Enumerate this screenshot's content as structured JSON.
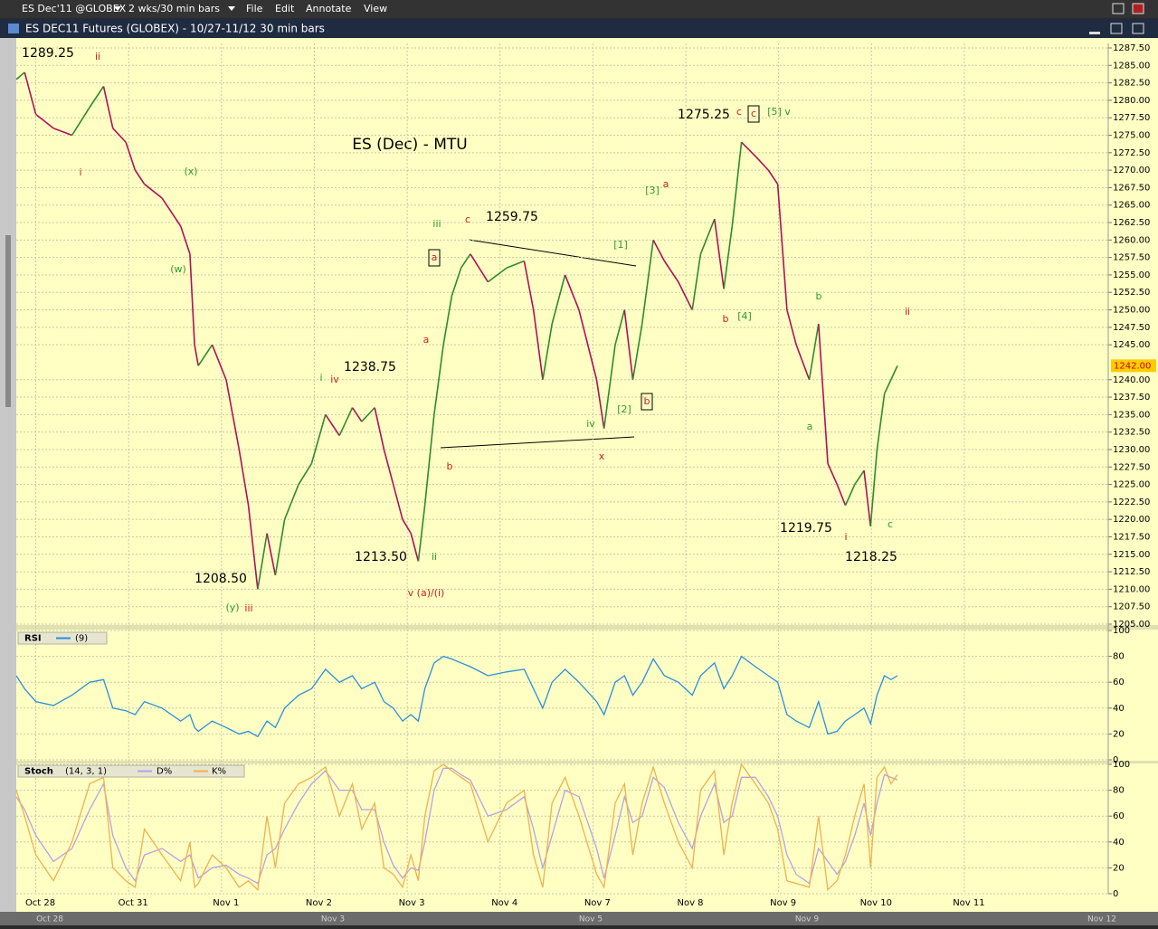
{
  "window": {
    "symbol": "ES Dec'11 @GLOBEX",
    "interval": "2 wks/30 min bars",
    "menus": [
      "File",
      "Edit",
      "Annotate",
      "View"
    ],
    "title": "ES DEC11 Futures (GLOBEX) - 10/27-11/12  30 min bars",
    "overview_labels": [
      "Oct 28",
      "Nov 3",
      "Nov 5",
      "Nov 9",
      "Nov 12"
    ]
  },
  "chart_data": [
    {
      "type": "line",
      "title": "ES (Dec) - MTU",
      "up_color": "#2e8b2e",
      "down_color": "#b0105a",
      "x": [
        -0.21,
        -0.12,
        0,
        0.19,
        0.39,
        0.58,
        0.73,
        0.83,
        0.97,
        1.07,
        1.17,
        1.36,
        1.56,
        1.66,
        1.71,
        1.75,
        1.9,
        2.05,
        2.19,
        2.29,
        2.39,
        2.49,
        2.58,
        2.68,
        2.83,
        2.97,
        3.12,
        3.27,
        3.41,
        3.51,
        3.65,
        3.75,
        3.85,
        3.95,
        4.04,
        4.12,
        4.19,
        4.29,
        4.39,
        4.48,
        4.58,
        4.68,
        4.87,
        5.07,
        5.26,
        5.36,
        5.46,
        5.56,
        5.7,
        5.85,
        6.04,
        6.12,
        6.24,
        6.34,
        6.43,
        6.53,
        6.65,
        6.77,
        6.92,
        7.07,
        7.16,
        7.31,
        7.41,
        7.5,
        7.6,
        7.75,
        7.89,
        7.99,
        8.09,
        8.19,
        8.33,
        8.43,
        8.53,
        8.63,
        8.72,
        8.82,
        8.92,
        8.99,
        9.06,
        9.14,
        9.21,
        9.28
      ],
      "values": [
        1283,
        1284,
        1278,
        1276,
        1275,
        1279,
        1282,
        1276,
        1274,
        1270,
        1268,
        1266,
        1262,
        1258,
        1245,
        1242,
        1245,
        1240,
        1230,
        1222,
        1210,
        1218,
        1212,
        1220,
        1225,
        1228,
        1235,
        1232,
        1236,
        1234,
        1236,
        1230,
        1225,
        1220,
        1218,
        1214,
        1222,
        1235,
        1245,
        1252,
        1256,
        1258,
        1254,
        1256,
        1257,
        1250,
        1240,
        1248,
        1255,
        1250,
        1240,
        1233,
        1245,
        1250,
        1240,
        1248,
        1260,
        1257,
        1254,
        1250,
        1258,
        1263,
        1253,
        1262,
        1274,
        1272,
        1270,
        1268,
        1250,
        1245,
        1240,
        1248,
        1228,
        1225,
        1222,
        1225,
        1227,
        1219,
        1230,
        1238,
        1240,
        1242
      ],
      "last_value": 1242,
      "last_value_label": "1242.00",
      "xlim": [
        -0.21,
        11.55
      ],
      "xticks": [
        {
          "value": 0,
          "label": "Oct 28"
        },
        {
          "value": 1,
          "label": "Oct 31"
        },
        {
          "value": 2,
          "label": "Nov 1"
        },
        {
          "value": 3,
          "label": "Nov 2"
        },
        {
          "value": 4,
          "label": "Nov 3"
        },
        {
          "value": 5,
          "label": "Nov 4"
        },
        {
          "value": 6,
          "label": "Nov 7"
        },
        {
          "value": 7,
          "label": "Nov 8"
        },
        {
          "value": 8,
          "label": "Nov 9"
        },
        {
          "value": 9,
          "label": "Nov 10"
        },
        {
          "value": 10,
          "label": "Nov 11"
        }
      ],
      "ylim": [
        1205,
        1287.5
      ],
      "yticks": [
        {
          "value": 1205,
          "label": "1205.00"
        },
        {
          "value": 1207.5,
          "label": "1207.50"
        },
        {
          "value": 1210,
          "label": "1210.00"
        },
        {
          "value": 1212.5,
          "label": "1212.50"
        },
        {
          "value": 1215,
          "label": "1215.00"
        },
        {
          "value": 1217.5,
          "label": "1217.50"
        },
        {
          "value": 1220,
          "label": "1220.00"
        },
        {
          "value": 1222.5,
          "label": "1222.50"
        },
        {
          "value": 1225,
          "label": "1225.00"
        },
        {
          "value": 1227.5,
          "label": "1227.50"
        },
        {
          "value": 1230,
          "label": "1230.00"
        },
        {
          "value": 1232.5,
          "label": "1232.50"
        },
        {
          "value": 1235,
          "label": "1235.00"
        },
        {
          "value": 1237.5,
          "label": "1237.50"
        },
        {
          "value": 1240,
          "label": "1240.00"
        },
        {
          "value": 1245,
          "label": "1245.00"
        },
        {
          "value": 1247.5,
          "label": "1247.50"
        },
        {
          "value": 1250,
          "label": "1250.00"
        },
        {
          "value": 1252.5,
          "label": "1252.50"
        },
        {
          "value": 1255,
          "label": "1255.00"
        },
        {
          "value": 1257.5,
          "label": "1257.50"
        },
        {
          "value": 1260,
          "label": "1260.00"
        },
        {
          "value": 1262.5,
          "label": "1262.50"
        },
        {
          "value": 1265,
          "label": "1265.00"
        },
        {
          "value": 1267.5,
          "label": "1267.50"
        },
        {
          "value": 1270,
          "label": "1270.00"
        },
        {
          "value": 1272.5,
          "label": "1272.50"
        },
        {
          "value": 1275,
          "label": "1275.00"
        },
        {
          "value": 1277.5,
          "label": "1277.50"
        },
        {
          "value": 1280,
          "label": "1280.00"
        },
        {
          "value": 1282.5,
          "label": "1282.50"
        },
        {
          "value": 1285,
          "label": "1285.00"
        },
        {
          "value": 1287.5,
          "label": "1287.50"
        }
      ],
      "grid": true,
      "annotations": [
        {
          "text": "1289.25",
          "color": "#000000"
        },
        {
          "text": "ii",
          "color": "#cc2222"
        },
        {
          "text": "i",
          "color": "#cc2222"
        },
        {
          "text": "(x)",
          "color": "#2e9a2e"
        },
        {
          "text": "(w)",
          "color": "#2e9a2e"
        },
        {
          "text": "i",
          "color": "#2e9a2e"
        },
        {
          "text": "iv",
          "color": "#cc2222"
        },
        {
          "text": "1238.75",
          "color": "#000000"
        },
        {
          "text": "1208.50",
          "color": "#000000"
        },
        {
          "text": "(y)",
          "color": "#2e9a2e"
        },
        {
          "text": "iii",
          "color": "#cc2222"
        },
        {
          "text": "1213.50",
          "color": "#000000"
        },
        {
          "text": "ii",
          "color": "#2e9a2e"
        },
        {
          "text": "v (a)/(i)",
          "color": "#cc2222"
        },
        {
          "text": "a",
          "color": "#cc2222"
        },
        {
          "text": "b",
          "color": "#cc2222"
        },
        {
          "text": "a",
          "color": "#cc2222"
        },
        {
          "text": "iii",
          "color": "#2e9a2e"
        },
        {
          "text": "c",
          "color": "#cc2222"
        },
        {
          "text": "1259.75",
          "color": "#000000"
        },
        {
          "text": "[1]",
          "color": "#2e9a2e"
        },
        {
          "text": "[2]",
          "color": "#2e9a2e"
        },
        {
          "text": "iv",
          "color": "#2e9a2e"
        },
        {
          "text": "x",
          "color": "#cc2222"
        },
        {
          "text": "b",
          "color": "#cc2222"
        },
        {
          "text": "[3]",
          "color": "#2e9a2e"
        },
        {
          "text": "a",
          "color": "#cc2222"
        },
        {
          "text": "1275.25",
          "color": "#000000"
        },
        {
          "text": "c",
          "color": "#cc2222"
        },
        {
          "text": "c",
          "color": "#cc2222"
        },
        {
          "text": "[5] v",
          "color": "#2e9a2e"
        },
        {
          "text": "[4]",
          "color": "#2e9a2e"
        },
        {
          "text": "b",
          "color": "#cc2222"
        },
        {
          "text": "b",
          "color": "#2e9a2e"
        },
        {
          "text": "ii",
          "color": "#cc2222"
        },
        {
          "text": "a",
          "color": "#2e9a2e"
        },
        {
          "text": "1219.75",
          "color": "#000000"
        },
        {
          "text": "i",
          "color": "#cc2222"
        },
        {
          "text": "c",
          "color": "#2e9a2e"
        },
        {
          "text": "1218.25",
          "color": "#000000"
        }
      ]
    },
    {
      "type": "line",
      "title": "RSI",
      "ylim": [
        0,
        100
      ],
      "yticks": [
        0,
        20,
        40,
        60,
        80,
        100
      ],
      "grid": true,
      "series": [
        {
          "name": "(9)",
          "color": "#2a8fdd",
          "values": [
            65,
            55,
            45,
            42,
            50,
            60,
            62,
            40,
            38,
            35,
            45,
            40,
            30,
            35,
            25,
            22,
            30,
            25,
            20,
            22,
            18,
            30,
            25,
            40,
            50,
            55,
            70,
            60,
            65,
            55,
            60,
            45,
            40,
            30,
            35,
            30,
            55,
            75,
            80,
            78,
            75,
            72,
            65,
            68,
            70,
            55,
            40,
            60,
            70,
            60,
            45,
            35,
            60,
            65,
            50,
            60,
            78,
            65,
            60,
            50,
            65,
            75,
            55,
            65,
            80,
            72,
            65,
            60,
            35,
            30,
            25,
            45,
            20,
            22,
            30,
            35,
            40,
            28,
            50,
            65,
            62,
            65
          ]
        }
      ]
    },
    {
      "type": "line",
      "title": "Stoch",
      "params": "(14, 3, 1)",
      "ylim": [
        0,
        100
      ],
      "yticks": [
        0,
        20,
        40,
        60,
        80,
        100
      ],
      "grid": true,
      "series": [
        {
          "name": "D%",
          "color": "#b4a2e6",
          "values": [
            75,
            65,
            45,
            25,
            35,
            65,
            85,
            45,
            20,
            10,
            30,
            35,
            25,
            30,
            20,
            12,
            20,
            22,
            15,
            12,
            8,
            30,
            35,
            50,
            70,
            85,
            95,
            80,
            80,
            65,
            65,
            40,
            22,
            12,
            20,
            18,
            40,
            80,
            97,
            97,
            92,
            88,
            60,
            65,
            75,
            50,
            20,
            45,
            80,
            75,
            35,
            12,
            45,
            75,
            55,
            60,
            90,
            82,
            55,
            35,
            60,
            85,
            55,
            60,
            90,
            90,
            75,
            60,
            30,
            15,
            8,
            35,
            25,
            15,
            25,
            45,
            70,
            45,
            70,
            92,
            90,
            88
          ]
        },
        {
          "name": "K%",
          "color": "#f0b050",
          "values": [
            80,
            60,
            30,
            10,
            40,
            85,
            90,
            20,
            10,
            5,
            50,
            30,
            10,
            40,
            5,
            8,
            30,
            20,
            5,
            10,
            3,
            60,
            20,
            70,
            85,
            90,
            98,
            60,
            85,
            50,
            70,
            20,
            15,
            5,
            30,
            10,
            60,
            95,
            100,
            95,
            90,
            85,
            40,
            70,
            80,
            30,
            5,
            70,
            90,
            60,
            15,
            5,
            70,
            85,
            30,
            70,
            98,
            70,
            40,
            20,
            80,
            95,
            30,
            70,
            100,
            85,
            70,
            50,
            10,
            8,
            5,
            60,
            3,
            10,
            30,
            60,
            85,
            20,
            90,
            98,
            85,
            92
          ]
        }
      ]
    }
  ]
}
